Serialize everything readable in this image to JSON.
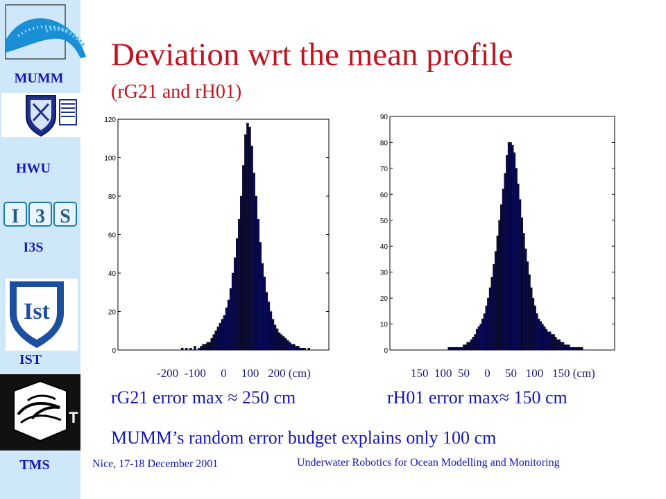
{
  "sidebar": {
    "labels": [
      "MUMM",
      "HWU",
      "I3S",
      "IST",
      "TMS"
    ],
    "i3s_logo_text": "I3S",
    "ist_logo_text": "IST",
    "tms_logo_text": "T"
  },
  "slide": {
    "title": "Deviation wrt the mean profile",
    "subtitle": "(rG21 and rH01)",
    "caption_left": "rG21 error max ≈ 250 cm",
    "caption_right": "rH01 error max≈ 150 cm",
    "caption_bottom": "MUMM’s random error budget explains only 100 cm",
    "footer_left": "Nice, 17-18 December 2001",
    "footer_center": "Underwater Robotics for Ocean Modelling and Monitoring"
  },
  "colors": {
    "title": "#c0141e",
    "text": "#1515b8",
    "bars": "#0a0a55",
    "sidebar": "#cfe8f9"
  },
  "chart_data": [
    {
      "type": "bar",
      "name": "rG21",
      "xlim": [
        -250,
        250
      ],
      "ylim": [
        0,
        120
      ],
      "yticks": [
        0,
        20,
        40,
        60,
        80,
        100,
        120
      ],
      "xtick_text": "-200  -100     0     100   200 (cm)",
      "bin_width": 5,
      "bins_start": -140,
      "values": [
        0,
        0,
        0,
        0,
        0,
        0,
        0,
        0,
        1,
        0,
        1,
        0,
        1,
        0,
        2,
        0,
        1,
        2,
        3,
        3,
        4,
        4,
        6,
        8,
        10,
        12,
        14,
        16,
        18,
        22,
        26,
        32,
        40,
        48,
        58,
        68,
        80,
        96,
        112,
        118,
        116,
        106,
        92,
        80,
        68,
        56,
        45,
        38,
        30,
        25,
        20,
        16,
        13,
        11,
        9,
        8,
        7,
        6,
        5,
        4,
        3,
        3,
        2,
        2,
        1,
        1,
        1,
        0,
        1,
        0,
        0,
        0,
        0,
        0,
        0,
        0,
        0,
        0,
        0,
        0
      ]
    },
    {
      "type": "bar",
      "name": "rH01",
      "xlim": [
        -150,
        150
      ],
      "ylim": [
        0,
        90
      ],
      "yticks": [
        0,
        10,
        20,
        30,
        40,
        50,
        60,
        70,
        80,
        90
      ],
      "xtick_text": "150  100  50     0     50   100   150 (cm)",
      "bin_width": 2.5,
      "bins_start": -120,
      "values": [
        0,
        0,
        0,
        0,
        0,
        0,
        0,
        0,
        0,
        0,
        0,
        0,
        0,
        0,
        0,
        0,
        0,
        0,
        0,
        1,
        1,
        1,
        1,
        1,
        1,
        1,
        1,
        2,
        2,
        3,
        3,
        4,
        5,
        6,
        8,
        9,
        10,
        12,
        14,
        17,
        20,
        24,
        28,
        33,
        38,
        44,
        50,
        56,
        62,
        68,
        75,
        80,
        80,
        79,
        76,
        70,
        64,
        58,
        51,
        45,
        39,
        34,
        29,
        24,
        20,
        17,
        14,
        12,
        11,
        10,
        9,
        8,
        7,
        7,
        6,
        6,
        5,
        4,
        4,
        3,
        3,
        2,
        2,
        2,
        1,
        1,
        1,
        1,
        1,
        1,
        1,
        0,
        0,
        0,
        0,
        0,
        0,
        0,
        0,
        0
      ]
    }
  ]
}
